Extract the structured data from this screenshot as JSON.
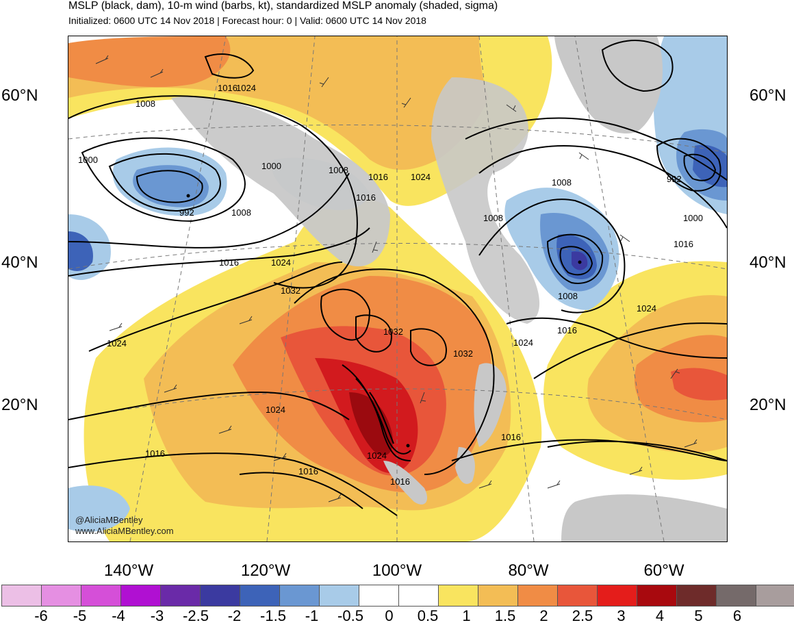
{
  "header": {
    "title": "MSLP (black, dam), 10-m wind (barbs, kt), standardized MSLP anomaly (shaded, sigma)",
    "subtitle": "Initialized: 0600 UTC 14 Nov 2018 | Forecast hour: 0 | Valid: 0600 UTC 14 Nov 2018"
  },
  "map": {
    "lat_labels": [
      "60°N",
      "40°N",
      "20°N"
    ],
    "lon_labels": [
      "140°W",
      "120°W",
      "100°W",
      "80°W",
      "60°W"
    ],
    "contour_labels": [
      "1008",
      "1016",
      "1024",
      "1000",
      "992",
      "1008",
      "1016",
      "1024",
      "1016",
      "1000",
      "1008",
      "1016",
      "1024",
      "1008",
      "992",
      "1000",
      "1016",
      "1008",
      "1024",
      "1032",
      "1032",
      "1032",
      "1024",
      "1016",
      "1024",
      "1016",
      "1016",
      "1024",
      "1024",
      "1016",
      "1016",
      "1008"
    ],
    "credit_handle": "@AliciaMBentley",
    "credit_site": "www.AliciaMBentley.com",
    "colors": {
      "land": "#c8c8c8",
      "low_strong": "#3d63b8",
      "low_mod": "#6a97d2",
      "low_weak": "#a8cbe8",
      "high_weak": "#f9e45f",
      "high_mod": "#f3bd55",
      "high_strong": "#f08c45",
      "high_vstrong": "#e8563a",
      "high_extreme": "#d21a1e",
      "high_max": "#9b0a0f"
    }
  },
  "colorbar": {
    "ticks": [
      "-6",
      "-5",
      "-4",
      "-3",
      "-2.5",
      "-2",
      "-1.5",
      "-1",
      "-0.5",
      "0",
      "0.5",
      "1",
      "1.5",
      "2",
      "2.5",
      "3",
      "4",
      "5",
      "6"
    ],
    "colors": [
      "#ecbfe6",
      "#e58fe2",
      "#d54fd8",
      "#b010d2",
      "#6a2aa8",
      "#3b3aa0",
      "#3d63b8",
      "#6a97d2",
      "#a8cbe8",
      "#ffffff",
      "#ffffff",
      "#f9e45f",
      "#f3bd55",
      "#f08c45",
      "#e8563a",
      "#e41d1b",
      "#a8090e",
      "#6e2b2a",
      "#756a6a",
      "#a89d9d"
    ]
  }
}
